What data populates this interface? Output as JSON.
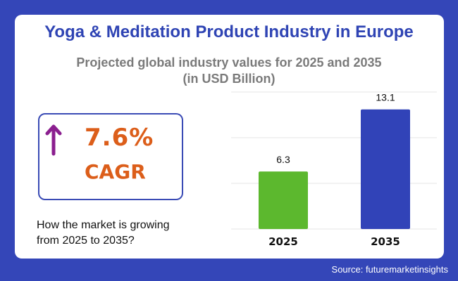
{
  "title": "Yoga & Meditation Product Industry in Europe",
  "subtitle_line1": "Projected global industry values for 2025 and 2035",
  "subtitle_line2": "(in USD Billion)",
  "cagr": {
    "value": "7.6%",
    "label": "CAGR",
    "icon": "arrow-up-icon",
    "color": "#dc5e1a",
    "arrow_color": "#8b1f8f"
  },
  "question_line1": "How the market is growing",
  "question_line2": "from 2025 to 2035?",
  "source": "Source: futuremarketinsights",
  "colors": {
    "background": "#3446b8",
    "title": "#2f44b4"
  },
  "chart_data": {
    "type": "bar",
    "categories": [
      "2025",
      "2035"
    ],
    "values": [
      6.3,
      13.1
    ],
    "data_labels": [
      "6.3",
      "13.1"
    ],
    "colors": [
      "#5cb82e",
      "#3143b8"
    ],
    "ylim": [
      0,
      15
    ],
    "gridlines": [
      0,
      5,
      10,
      15
    ],
    "grid": true
  }
}
